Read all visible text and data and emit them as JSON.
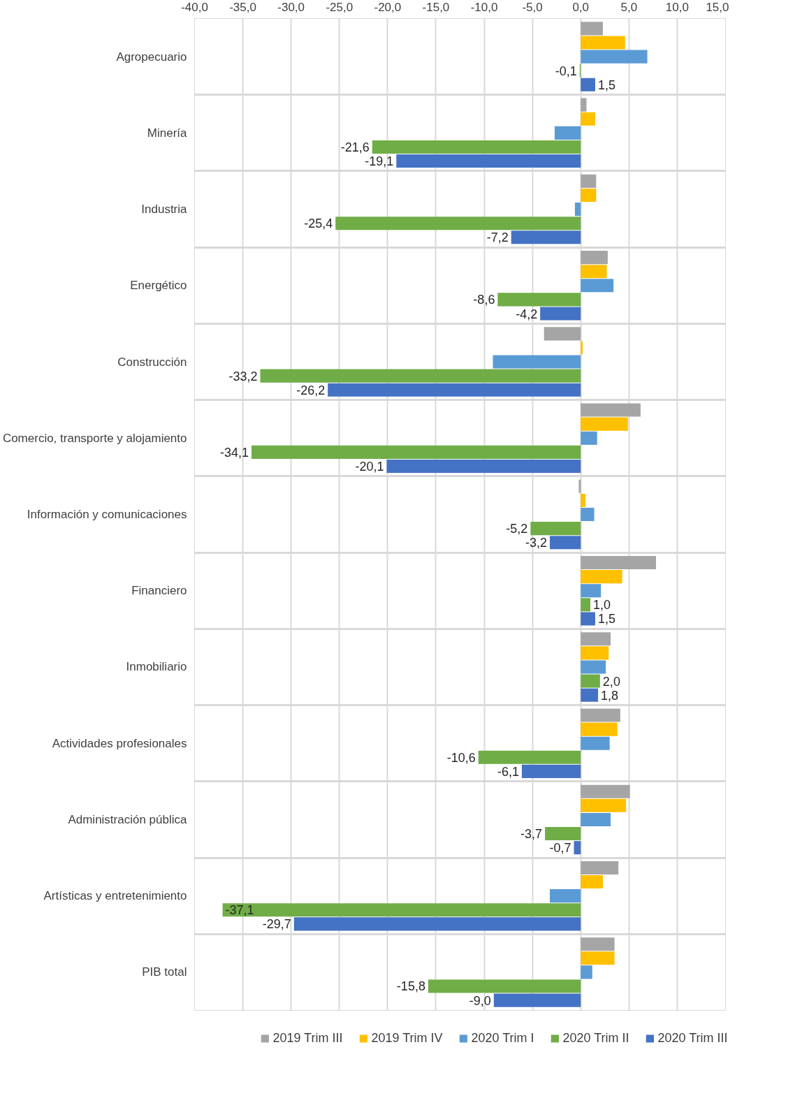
{
  "chart_data": {
    "type": "bar",
    "orientation": "horizontal",
    "categories": [
      "Agropecuario",
      "Minería",
      "Industria",
      "Energético",
      "Construcción",
      "Comercio, transporte y alojamiento",
      "Información y comunicaciones",
      "Financiero",
      "Inmobiliario",
      "Actividades profesionales",
      "Administración pública",
      "Artísticas y entretenimiento",
      "PIB total"
    ],
    "series": [
      {
        "name": "2019 Trim III",
        "color": "#a5a5a5",
        "values": [
          2.3,
          0.6,
          1.6,
          2.8,
          -3.8,
          6.2,
          -0.2,
          7.8,
          3.1,
          4.1,
          5.1,
          3.9,
          3.5
        ]
      },
      {
        "name": "2019 Trim IV",
        "color": "#ffc000",
        "values": [
          4.6,
          1.5,
          1.6,
          2.7,
          0.2,
          4.9,
          0.5,
          4.3,
          2.9,
          3.8,
          4.7,
          2.3,
          3.5
        ]
      },
      {
        "name": "2020 Trim I",
        "color": "#5b9bd5",
        "values": [
          6.9,
          -2.7,
          -0.6,
          3.4,
          -9.1,
          1.7,
          1.4,
          2.1,
          2.6,
          3.0,
          3.1,
          -3.2,
          1.2
        ]
      },
      {
        "name": "2020 Trim II",
        "color": "#70ad47",
        "values": [
          -0.1,
          -21.6,
          -25.4,
          -8.6,
          -33.2,
          -34.1,
          -5.2,
          1.0,
          2.0,
          -10.6,
          -3.7,
          -37.1,
          -15.8
        ],
        "value_labels": [
          "-0,1",
          "-21,6",
          "-25,4",
          "-8,6",
          "-33,2",
          "-34,1",
          "-5,2",
          "1,0",
          "2,0",
          "-10,6",
          "-3,7",
          "-37,1",
          "-15,8"
        ]
      },
      {
        "name": "2020 Trim III",
        "color": "#4472c4",
        "values": [
          1.5,
          -19.1,
          -7.2,
          -4.2,
          -26.2,
          -20.1,
          -3.2,
          1.5,
          1.8,
          -6.1,
          -0.7,
          -29.7,
          -9.0
        ],
        "value_labels": [
          "1,5",
          "-19,1",
          "-7,2",
          "-4,2",
          "-26,2",
          "-20,1",
          "-3,2",
          "1,5",
          "1,8",
          "-6,1",
          "-0,7",
          "-29,7",
          "-9,0"
        ]
      }
    ],
    "xlim": [
      -40,
      15
    ],
    "xticks": [
      {
        "value": -40,
        "label": "-40,0"
      },
      {
        "value": -35,
        "label": "-35,0"
      },
      {
        "value": -30,
        "label": "-30,0"
      },
      {
        "value": -25,
        "label": "-25,0"
      },
      {
        "value": -20,
        "label": "-20,0"
      },
      {
        "value": -15,
        "label": "-15,0"
      },
      {
        "value": -10,
        "label": "-10,0"
      },
      {
        "value": -5,
        "label": "-5,0"
      },
      {
        "value": 0,
        "label": "0,0"
      },
      {
        "value": 5,
        "label": "5,0"
      },
      {
        "value": 10,
        "label": "10,0"
      },
      {
        "value": 15,
        "label": "15,0"
      }
    ],
    "grid": true,
    "legend": "bottom"
  }
}
